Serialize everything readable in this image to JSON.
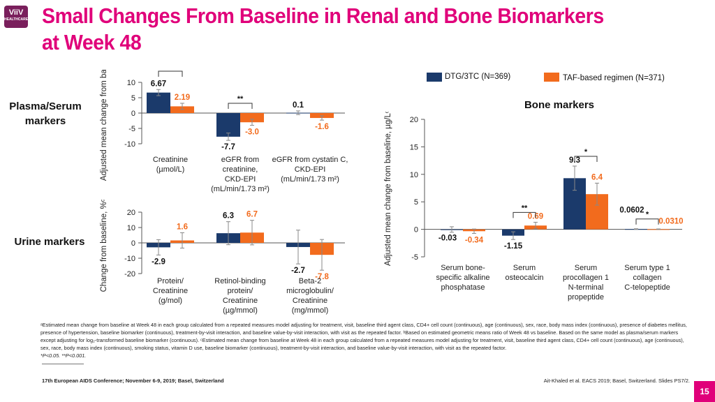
{
  "header": {
    "title_line1": "Small Changes From Baseline in Renal and Bone Biomarkers",
    "title_line2": "at Week 48",
    "logo_text": "ViiV",
    "logo_subtext": "HEALTHCARE"
  },
  "colors": {
    "dtg": "#1b3a6b",
    "taf": "#f26b1d",
    "accent": "#e0007a",
    "sig_box": "#aaaaaa"
  },
  "legend": {
    "dtg_label": "DTG/3TC (N=369)",
    "taf_label": "TAF-based regimen (N=371)"
  },
  "row_labels": {
    "plasma": "Plasma/Serum\nmarkers",
    "urine": "Urine markers",
    "bone": "Bone markers"
  },
  "chart_data": [
    {
      "type": "bar",
      "title": "Plasma/Serum markers",
      "ylabel": "Adjusted mean change from baselineᵃ",
      "ylim": [
        -10,
        10
      ],
      "yticks": [
        10,
        5,
        0,
        -5,
        -10
      ],
      "categories": [
        "Creatinine\n(µmol/L)",
        "eGFR from\ncreatinine,\nCKD-EPI\n(mL/min/1.73 m²)",
        "eGFR from cystatin C,\nCKD-EPI\n(mL/min/1.73 m²)"
      ],
      "series": [
        {
          "name": "DTG/3TC (N=369)",
          "values": [
            6.67,
            -7.7,
            0.1
          ],
          "labels": [
            "6.67",
            "-7.7",
            "0.1"
          ],
          "err": [
            1.0,
            1.2,
            0.6
          ]
        },
        {
          "name": "TAF-based regimen (N=371)",
          "values": [
            2.19,
            -3.0,
            -1.6
          ],
          "labels": [
            "2.19",
            "-3.0",
            "-1.6"
          ],
          "err": [
            1.0,
            1.0,
            0.7
          ]
        }
      ],
      "significance": [
        {
          "category": 0,
          "label": "**"
        },
        {
          "category": 1,
          "label": "**"
        }
      ]
    },
    {
      "type": "bar",
      "title": "Urine markers",
      "ylabel": "Change from baseline, %ᶜ,ᵇ",
      "ylim": [
        -20,
        20
      ],
      "yticks": [
        20,
        10,
        0,
        -10,
        -20
      ],
      "categories": [
        "Protein/\nCreatinine\n(g/mol)",
        "Retinol-binding\nprotein/\nCreatinine\n(µg/mmol)",
        "Beta-2\nmicroglobulin/\nCreatinine\n(mg/mmol)"
      ],
      "series": [
        {
          "name": "DTG/3TC (N=369)",
          "values": [
            -2.9,
            6.3,
            -2.7
          ],
          "labels": [
            "-2.9",
            "6.3",
            "-2.7"
          ],
          "err": [
            5.0,
            7.5,
            11.0
          ]
        },
        {
          "name": "TAF-based regimen (N=371)",
          "values": [
            1.6,
            6.7,
            -7.8
          ],
          "labels": [
            "1.6",
            "6.7",
            "-7.8"
          ],
          "err": [
            5.0,
            8.0,
            10.0
          ]
        }
      ]
    },
    {
      "type": "bar",
      "title": "Bone markers",
      "ylabel": "Adjusted mean change from baseline, µg/Lᶜ",
      "ylim": [
        -5,
        20
      ],
      "yticks": [
        20,
        15,
        10,
        5,
        0,
        -5
      ],
      "categories": [
        "Serum bone-\nspecific alkaline\nphosphatase",
        "Serum\nosteocalcin",
        "Serum\nprocollagen 1\nN-terminal\npropeptide",
        "Serum type 1\ncollagen\nC-telopeptide"
      ],
      "series": [
        {
          "name": "DTG/3TC (N=369)",
          "values": [
            -0.03,
            -1.15,
            9.3,
            0.0602
          ],
          "labels": [
            "-0.03",
            "-1.15",
            "9.3",
            "0.0602"
          ],
          "err": [
            0.5,
            0.7,
            2.2,
            0.05
          ]
        },
        {
          "name": "TAF-based regimen (N=371)",
          "values": [
            -0.34,
            0.69,
            6.4,
            0.031
          ],
          "labels": [
            "-0.34",
            "0.69",
            "6.4",
            "0.0310"
          ],
          "err": [
            0.4,
            0.6,
            2.0,
            0.04
          ]
        }
      ],
      "significance": [
        {
          "category": 1,
          "label": "**"
        },
        {
          "category": 2,
          "label": "*"
        },
        {
          "category": 3,
          "label": "*"
        }
      ]
    }
  ],
  "footnotes": {
    "text": "ᵃEstimated mean change from baseline at Week 48 in each group calculated from a repeated measures model adjusting for treatment, visit, baseline third agent class, CD4+ cell count (continuous), age (continuous), sex, race, body mass index (continuous), presence of diabetes mellitus, presence of hypertension, baseline biomarker (continuous), treatment-by-visit interaction, and baseline value-by-visit interaction, with visit as the repeated factor. ᵇBased on estimated geometric means ratio of Week 48 vs baseline. Based on the same model as plasma/serum markers except adjusting for log₂-transformed baseline biomarker (continuous). ᶜEstimated mean change from baseline at Week 48 in each group calculated from a repeated measures model adjusting for treatment, visit, baseline third agent class, CD4+ cell count (continuous), age (continuous), sex, race, body mass index (continuous), smoking status, vitamin D use, baseline biomarker (continuous), treatment-by-visit interaction, and baseline value-by-visit interaction, with visit as the repeated factor.",
    "pvalues": "*P<0.05. **P<0.001."
  },
  "conference": "17th European AIDS Conference; November 6-9, 2019; Basel, Switzerland",
  "citation": "Ait-Khaled et al. EACS 2019; Basel, Switzerland. Slides PS7/2.",
  "page_number": "15"
}
